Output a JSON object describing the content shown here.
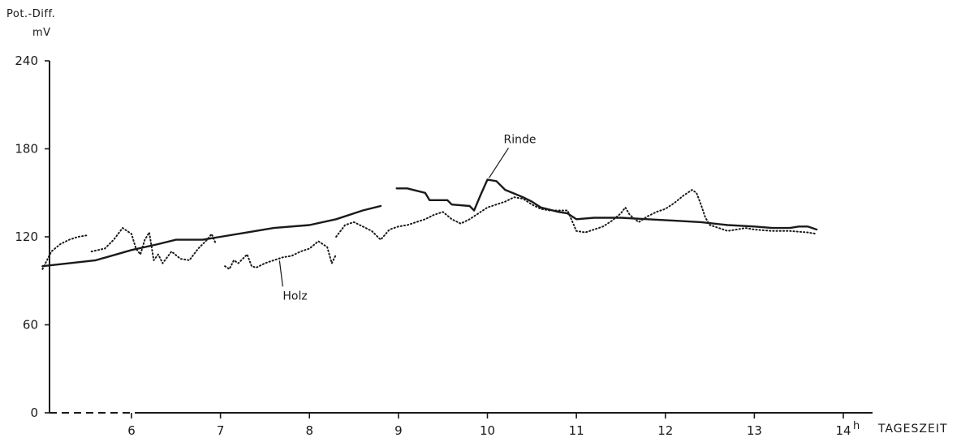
{
  "chart_data": {
    "type": "line",
    "ylabel_line1": "Pot.-Diff.",
    "ylabel_line2": "mV",
    "xlabel": "TAGESZEIT",
    "x_unit_superscript": "h",
    "ylim": [
      0,
      240
    ],
    "xlim": [
      5.0,
      14.7
    ],
    "yticks": [
      0,
      60,
      120,
      180,
      240
    ],
    "xticks": [
      6,
      7,
      8,
      9,
      10,
      11,
      12,
      13,
      14
    ],
    "grid": false,
    "series": [
      {
        "name": "Rinde",
        "style": "solid",
        "segments": [
          [
            [
              5.0,
              100
            ],
            [
              5.3,
              102
            ],
            [
              5.6,
              104
            ],
            [
              6.0,
              111
            ],
            [
              6.3,
              115
            ],
            [
              6.5,
              118
            ],
            [
              6.8,
              118
            ],
            [
              7.0,
              120
            ],
            [
              7.3,
              123
            ],
            [
              7.6,
              126
            ],
            [
              8.0,
              128
            ],
            [
              8.3,
              132
            ],
            [
              8.6,
              138
            ],
            [
              8.8,
              141
            ]
          ],
          [
            [
              8.98,
              153
            ],
            [
              9.1,
              153
            ],
            [
              9.3,
              150
            ],
            [
              9.35,
              145
            ],
            [
              9.55,
              145
            ],
            [
              9.6,
              142
            ],
            [
              9.8,
              141
            ],
            [
              9.85,
              138
            ],
            [
              9.92,
              148
            ],
            [
              10.0,
              159
            ],
            [
              10.1,
              158
            ],
            [
              10.2,
              152
            ],
            [
              10.4,
              147
            ],
            [
              10.5,
              144
            ],
            [
              10.6,
              140
            ],
            [
              10.8,
              137
            ],
            [
              10.9,
              136
            ],
            [
              11.0,
              132
            ],
            [
              11.2,
              133
            ],
            [
              11.5,
              133
            ],
            [
              11.8,
              132
            ],
            [
              12.1,
              131
            ],
            [
              12.4,
              130
            ],
            [
              12.7,
              128
            ],
            [
              13.0,
              127
            ],
            [
              13.2,
              126
            ],
            [
              13.4,
              126
            ],
            [
              13.5,
              127
            ],
            [
              13.6,
              127
            ],
            [
              13.7,
              125
            ]
          ]
        ]
      },
      {
        "name": "Holz",
        "style": "dotted",
        "segments": [
          [
            [
              5.0,
              98
            ],
            [
              5.05,
              104
            ],
            [
              5.1,
              110
            ],
            [
              5.2,
              115
            ],
            [
              5.3,
              118
            ],
            [
              5.4,
              120
            ],
            [
              5.5,
              121
            ]
          ],
          [
            [
              5.55,
              110
            ],
            [
              5.7,
              112
            ],
            [
              5.8,
              118
            ],
            [
              5.9,
              126
            ],
            [
              6.0,
              122
            ],
            [
              6.05,
              112
            ],
            [
              6.1,
              108
            ],
            [
              6.15,
              118
            ],
            [
              6.2,
              123
            ],
            [
              6.25,
              104
            ],
            [
              6.3,
              108
            ],
            [
              6.35,
              102
            ],
            [
              6.45,
              110
            ],
            [
              6.55,
              105
            ],
            [
              6.65,
              104
            ],
            [
              6.75,
              112
            ],
            [
              6.85,
              118
            ],
            [
              6.9,
              122
            ],
            [
              6.95,
              115
            ]
          ],
          [
            [
              7.05,
              100
            ],
            [
              7.1,
              98
            ],
            [
              7.15,
              104
            ],
            [
              7.2,
              102
            ],
            [
              7.3,
              108
            ],
            [
              7.35,
              100
            ],
            [
              7.4,
              99
            ],
            [
              7.5,
              102
            ],
            [
              7.6,
              104
            ],
            [
              7.7,
              106
            ],
            [
              7.8,
              107
            ],
            [
              7.9,
              110
            ],
            [
              8.0,
              112
            ],
            [
              8.1,
              117
            ],
            [
              8.2,
              113
            ],
            [
              8.25,
              102
            ],
            [
              8.3,
              108
            ]
          ],
          [
            [
              8.3,
              120
            ],
            [
              8.4,
              128
            ],
            [
              8.5,
              130
            ],
            [
              8.6,
              127
            ],
            [
              8.7,
              124
            ],
            [
              8.8,
              118
            ],
            [
              8.9,
              125
            ],
            [
              9.0,
              127
            ],
            [
              9.1,
              128
            ],
            [
              9.2,
              130
            ],
            [
              9.3,
              132
            ],
            [
              9.4,
              135
            ],
            [
              9.5,
              137
            ],
            [
              9.6,
              132
            ],
            [
              9.7,
              129
            ],
            [
              9.8,
              132
            ],
            [
              9.9,
              136
            ],
            [
              10.0,
              140
            ],
            [
              10.1,
              142
            ],
            [
              10.2,
              144
            ],
            [
              10.3,
              147
            ],
            [
              10.4,
              146
            ],
            [
              10.5,
              142
            ],
            [
              10.6,
              139
            ],
            [
              10.7,
              138
            ],
            [
              10.8,
              138
            ],
            [
              10.9,
              138
            ],
            [
              11.0,
              124
            ],
            [
              11.1,
              123
            ],
            [
              11.2,
              125
            ],
            [
              11.3,
              127
            ],
            [
              11.4,
              131
            ],
            [
              11.5,
              136
            ],
            [
              11.55,
              140
            ],
            [
              11.6,
              135
            ],
            [
              11.7,
              130
            ],
            [
              11.8,
              134
            ],
            [
              11.9,
              137
            ],
            [
              12.0,
              139
            ],
            [
              12.1,
              143
            ],
            [
              12.2,
              148
            ],
            [
              12.3,
              152
            ],
            [
              12.35,
              150
            ],
            [
              12.4,
              142
            ],
            [
              12.45,
              133
            ],
            [
              12.5,
              128
            ],
            [
              12.6,
              126
            ],
            [
              12.7,
              124
            ],
            [
              12.8,
              125
            ],
            [
              12.9,
              126
            ],
            [
              13.0,
              125
            ],
            [
              13.2,
              124
            ],
            [
              13.4,
              124
            ],
            [
              13.6,
              123
            ],
            [
              13.7,
              122
            ]
          ]
        ]
      }
    ],
    "annotations": [
      {
        "text": "Rinde",
        "series": "Rinde",
        "anchor": [
          10.0,
          159
        ]
      },
      {
        "text": "Holz",
        "series": "Holz",
        "anchor": [
          7.7,
          106
        ]
      }
    ]
  }
}
